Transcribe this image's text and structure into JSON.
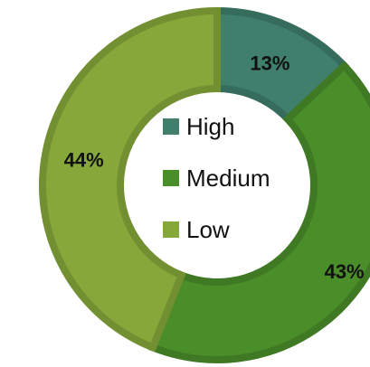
{
  "chart_data": {
    "type": "pie",
    "variant": "donut",
    "categories": [
      "High",
      "Medium",
      "Low"
    ],
    "values": [
      13,
      43,
      44
    ],
    "data_labels": [
      "13%",
      "43%",
      "44%"
    ],
    "colors": [
      "#3F7F6B",
      "#4A8E2A",
      "#86A83A"
    ],
    "legend": {
      "placement": "center",
      "entries": [
        "High",
        "Medium",
        "Low"
      ]
    },
    "title": "",
    "grid": false
  }
}
